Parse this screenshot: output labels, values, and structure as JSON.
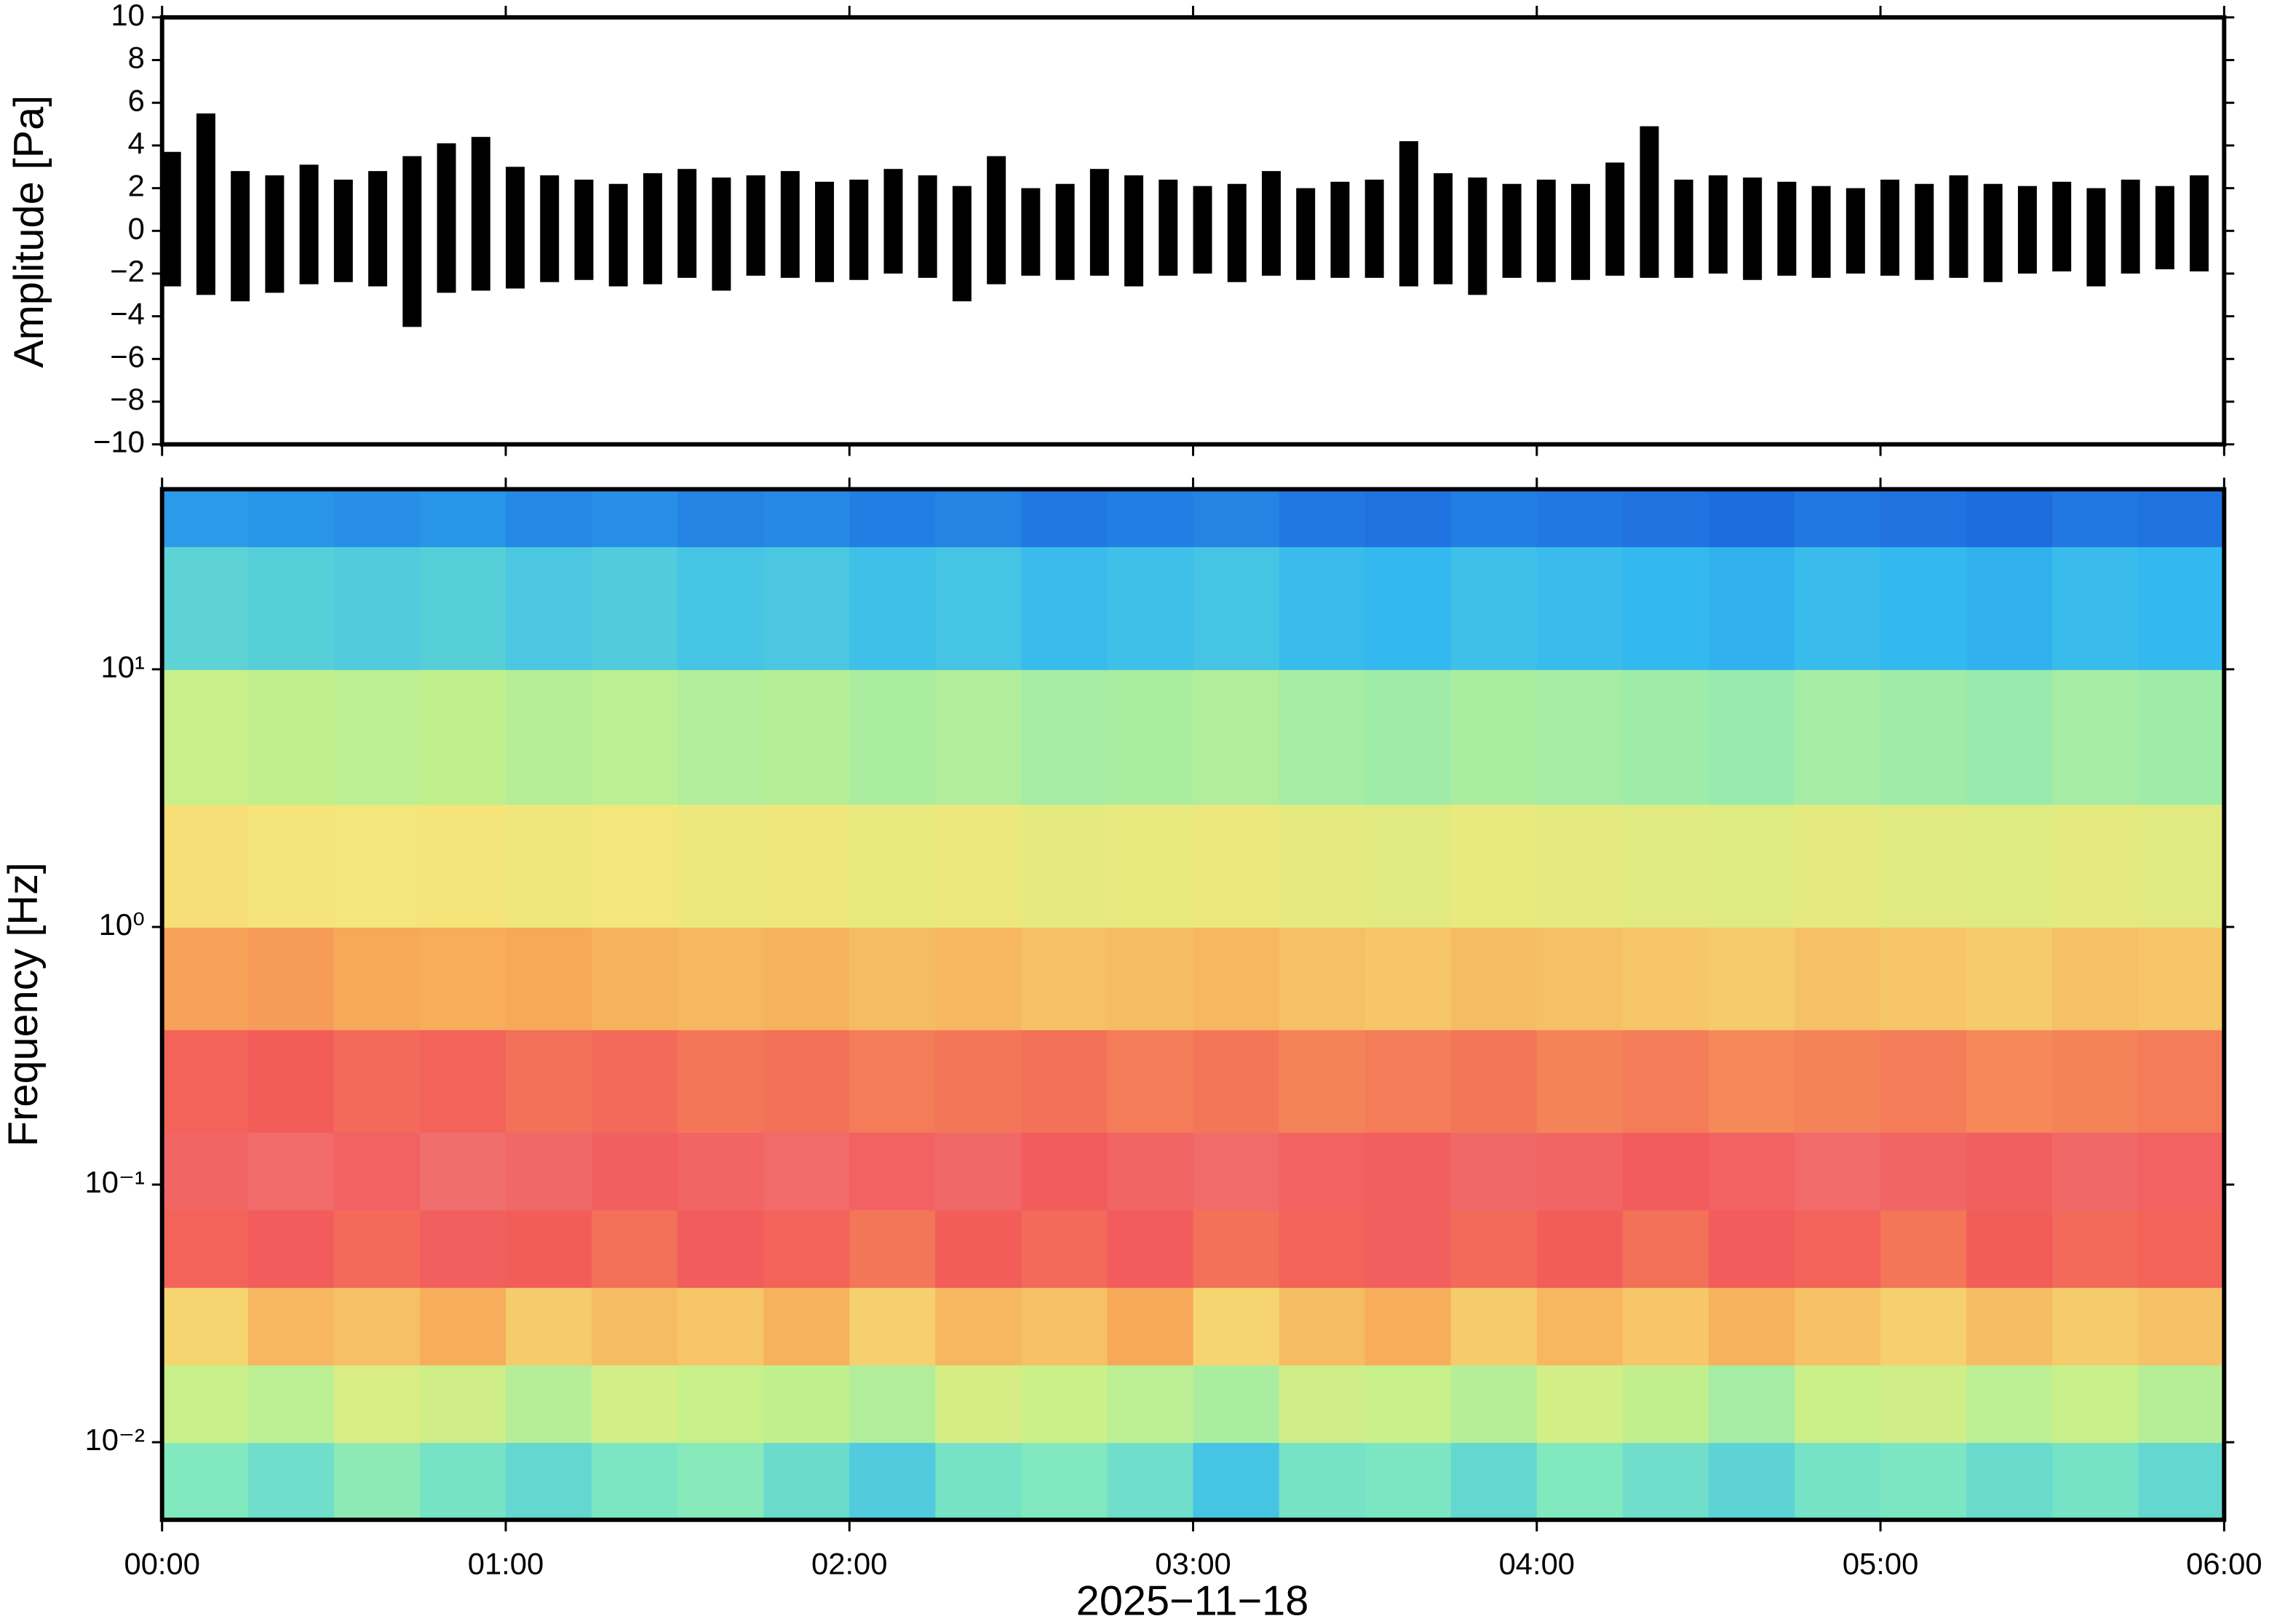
{
  "chart_data": [
    {
      "type": "envelope",
      "ylabel": "Amplitude [Pa]",
      "xlim": [
        0,
        360
      ],
      "ylim": [
        -10,
        10
      ],
      "yticks": [
        {
          "value": -10,
          "label": "−10"
        },
        {
          "value": -8,
          "label": "−8"
        },
        {
          "value": -6,
          "label": "−6"
        },
        {
          "value": -4,
          "label": "−4"
        },
        {
          "value": -2,
          "label": "−2"
        },
        0,
        2,
        4,
        6,
        8,
        10
      ],
      "color": "#000000",
      "x": [
        0,
        6,
        12,
        18,
        24,
        30,
        36,
        42,
        48,
        54,
        60,
        66,
        72,
        78,
        84,
        90,
        96,
        102,
        108,
        114,
        120,
        126,
        132,
        138,
        144,
        150,
        156,
        162,
        168,
        174,
        180,
        186,
        192,
        198,
        204,
        210,
        216,
        222,
        228,
        234,
        240,
        246,
        252,
        258,
        264,
        270,
        276,
        282,
        288,
        294,
        300,
        306,
        312,
        318,
        324,
        330,
        336,
        342,
        348,
        354
      ],
      "high": [
        3.7,
        5.5,
        2.8,
        2.6,
        3.1,
        2.4,
        2.8,
        3.5,
        4.1,
        4.4,
        3.0,
        2.6,
        2.4,
        2.2,
        2.7,
        2.9,
        2.5,
        2.6,
        2.8,
        2.3,
        2.4,
        2.9,
        2.6,
        2.1,
        3.5,
        2.0,
        2.2,
        2.9,
        2.6,
        2.4,
        2.1,
        2.2,
        2.8,
        2.0,
        2.3,
        2.4,
        4.2,
        2.7,
        2.5,
        2.2,
        2.4,
        2.2,
        3.2,
        4.9,
        2.4,
        2.6,
        2.5,
        2.3,
        2.1,
        2.0,
        2.4,
        2.2,
        2.6,
        2.2,
        2.1,
        2.3,
        2.0,
        2.4,
        2.1,
        2.6
      ],
      "low": [
        -2.6,
        -3.0,
        -3.3,
        -2.9,
        -2.5,
        -2.4,
        -2.6,
        -4.5,
        -2.9,
        -2.8,
        -2.7,
        -2.4,
        -2.3,
        -2.6,
        -2.5,
        -2.2,
        -2.8,
        -2.1,
        -2.2,
        -2.4,
        -2.3,
        -2.0,
        -2.2,
        -3.3,
        -2.5,
        -2.1,
        -2.3,
        -2.1,
        -2.6,
        -2.1,
        -2.0,
        -2.4,
        -2.1,
        -2.3,
        -2.2,
        -2.2,
        -2.6,
        -2.5,
        -3.0,
        -2.2,
        -2.4,
        -2.3,
        -2.1,
        -2.2,
        -2.2,
        -2.0,
        -2.3,
        -2.1,
        -2.2,
        -2.0,
        -2.1,
        -2.3,
        -2.2,
        -2.4,
        -2.0,
        -1.9,
        -2.6,
        -2.0,
        -1.8,
        -1.9
      ]
    },
    {
      "type": "heatmap",
      "ylabel": "Frequency [Hz]",
      "xlabel": "2025−11−18",
      "ylog": true,
      "xlim": [
        0,
        360
      ],
      "ylim": [
        0.005,
        50
      ],
      "xticks": [
        {
          "value": 0,
          "label": "00:00"
        },
        {
          "value": 60,
          "label": "01:00"
        },
        {
          "value": 120,
          "label": "02:00"
        },
        {
          "value": 180,
          "label": "03:00"
        },
        {
          "value": 240,
          "label": "04:00"
        },
        {
          "value": 300,
          "label": "05:00"
        },
        {
          "value": 360,
          "label": "06:00"
        }
      ],
      "yticks": [
        {
          "value": 0.01,
          "label": "10⁻²"
        },
        {
          "value": 0.1,
          "label": "10⁻¹"
        },
        {
          "value": 1,
          "label": "10⁰"
        },
        {
          "value": 10,
          "label": "10¹"
        }
      ],
      "colorscale": [
        "#0a1a8c",
        "#1f6fe0",
        "#33b8f0",
        "#7fe8c0",
        "#c8f08a",
        "#f5e67a",
        "#f7a858",
        "#f25a5a",
        "#f08080"
      ],
      "zlim": [
        0,
        1
      ],
      "x": [
        0,
        15,
        30,
        45,
        60,
        75,
        90,
        105,
        120,
        135,
        150,
        165,
        180,
        195,
        210,
        225,
        240,
        255,
        270,
        285,
        300,
        315,
        330,
        345,
        360
      ],
      "y": [
        0.005,
        0.01,
        0.02,
        0.04,
        0.08,
        0.16,
        0.4,
        1,
        3,
        10,
        30,
        50
      ],
      "z": [
        [
          0.38,
          0.35,
          0.4,
          0.36,
          0.33,
          0.37,
          0.39,
          0.34,
          0.3,
          0.36,
          0.38,
          0.35,
          0.28,
          0.36,
          0.37,
          0.33,
          0.38,
          0.35,
          0.32,
          0.36,
          0.37,
          0.34,
          0.36,
          0.33
        ],
        [
          0.5,
          0.48,
          0.55,
          0.52,
          0.47,
          0.53,
          0.5,
          0.49,
          0.46,
          0.54,
          0.51,
          0.48,
          0.45,
          0.52,
          0.5,
          0.47,
          0.53,
          0.49,
          0.44,
          0.51,
          0.52,
          0.48,
          0.5,
          0.47
        ],
        [
          0.66,
          0.72,
          0.7,
          0.74,
          0.68,
          0.71,
          0.69,
          0.73,
          0.67,
          0.72,
          0.7,
          0.75,
          0.66,
          0.71,
          0.74,
          0.68,
          0.72,
          0.69,
          0.73,
          0.7,
          0.67,
          0.71,
          0.68,
          0.7
        ],
        [
          0.86,
          0.88,
          0.85,
          0.89,
          0.87,
          0.84,
          0.88,
          0.86,
          0.83,
          0.87,
          0.85,
          0.88,
          0.84,
          0.86,
          0.89,
          0.85,
          0.87,
          0.84,
          0.88,
          0.86,
          0.83,
          0.87,
          0.85,
          0.86
        ],
        [
          0.91,
          0.93,
          0.9,
          0.94,
          0.92,
          0.89,
          0.91,
          0.93,
          0.9,
          0.92,
          0.88,
          0.91,
          0.93,
          0.9,
          0.89,
          0.92,
          0.91,
          0.88,
          0.9,
          0.93,
          0.91,
          0.89,
          0.92,
          0.9
        ],
        [
          0.86,
          0.87,
          0.85,
          0.86,
          0.84,
          0.85,
          0.83,
          0.84,
          0.82,
          0.83,
          0.84,
          0.82,
          0.83,
          0.81,
          0.82,
          0.83,
          0.81,
          0.82,
          0.8,
          0.81,
          0.82,
          0.8,
          0.81,
          0.82
        ],
        [
          0.76,
          0.77,
          0.75,
          0.74,
          0.75,
          0.73,
          0.72,
          0.73,
          0.71,
          0.72,
          0.7,
          0.71,
          0.72,
          0.7,
          0.69,
          0.71,
          0.7,
          0.69,
          0.68,
          0.7,
          0.69,
          0.68,
          0.7,
          0.69
        ],
        [
          0.64,
          0.63,
          0.62,
          0.63,
          0.61,
          0.62,
          0.6,
          0.61,
          0.59,
          0.6,
          0.58,
          0.59,
          0.6,
          0.58,
          0.57,
          0.59,
          0.58,
          0.57,
          0.56,
          0.58,
          0.57,
          0.56,
          0.58,
          0.57
        ],
        [
          0.5,
          0.49,
          0.48,
          0.49,
          0.47,
          0.48,
          0.46,
          0.47,
          0.45,
          0.46,
          0.44,
          0.45,
          0.46,
          0.44,
          0.43,
          0.45,
          0.44,
          0.43,
          0.42,
          0.44,
          0.43,
          0.42,
          0.44,
          0.43
        ],
        [
          0.32,
          0.31,
          0.3,
          0.31,
          0.29,
          0.3,
          0.28,
          0.29,
          0.27,
          0.28,
          0.26,
          0.27,
          0.28,
          0.26,
          0.25,
          0.27,
          0.26,
          0.25,
          0.24,
          0.26,
          0.25,
          0.24,
          0.26,
          0.25
        ],
        [
          0.2,
          0.19,
          0.18,
          0.19,
          0.17,
          0.18,
          0.16,
          0.17,
          0.15,
          0.16,
          0.14,
          0.15,
          0.16,
          0.14,
          0.13,
          0.15,
          0.14,
          0.13,
          0.12,
          0.14,
          0.13,
          0.12,
          0.14,
          0.13
        ]
      ]
    }
  ]
}
